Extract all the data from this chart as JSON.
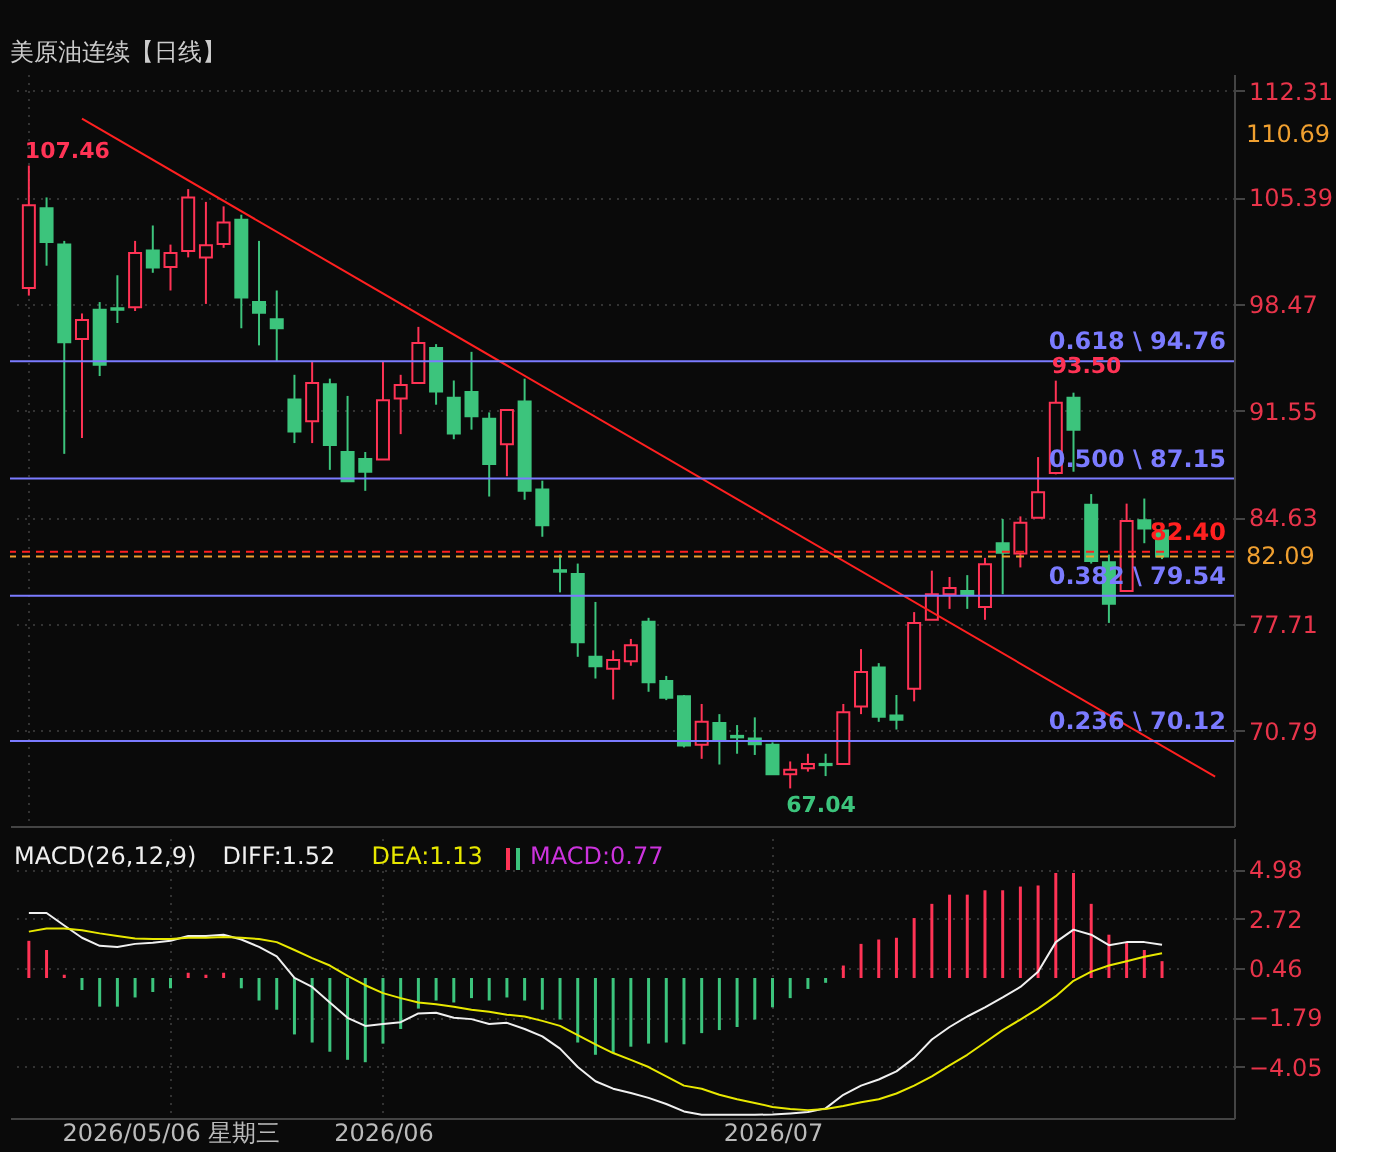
{
  "chart_data": [
    {
      "type": "candlestick",
      "title": "美原油连续【日线】",
      "categories": [
        null,
        null,
        null,
        null,
        null,
        null,
        null,
        null,
        null,
        null,
        null,
        null,
        null,
        null,
        null,
        null,
        null,
        null,
        null,
        null,
        null,
        null,
        null,
        null,
        null,
        null,
        null,
        null,
        null,
        null,
        null,
        null,
        null,
        null,
        null,
        null,
        null,
        null,
        null,
        null,
        null,
        null,
        null,
        null,
        null,
        null,
        null,
        null,
        null,
        null,
        null,
        null,
        null,
        null,
        null,
        null,
        null,
        null,
        null,
        null,
        null,
        null,
        null,
        null,
        null,
        null,
        null,
        null
      ],
      "tick_labels": "y",
      "ohlc": [
        [
          99.51,
          107.46,
          99.02,
          104.89
        ],
        [
          104.69,
          105.39,
          100.96,
          102.49
        ],
        [
          102.33,
          102.57,
          88.75,
          95.99
        ],
        [
          96.2,
          97.86,
          89.78,
          97.44
        ],
        [
          98.1,
          98.6,
          93.8,
          94.54
        ],
        [
          98.2,
          100.34,
          97.24,
          98.1
        ],
        [
          98.27,
          102.57,
          98.02,
          101.79
        ],
        [
          101.95,
          103.57,
          100.5,
          100.84
        ],
        [
          100.88,
          102.33,
          99.35,
          101.79
        ],
        [
          101.91,
          105.93,
          101.5,
          105.39
        ],
        [
          101.5,
          105.1,
          98.48,
          102.29
        ],
        [
          102.37,
          104.81,
          102.12,
          103.77
        ],
        [
          103.94,
          104.27,
          96.9,
          98.89
        ],
        [
          98.6,
          102.57,
          95.79,
          97.9
        ],
        [
          97.48,
          99.35,
          94.71,
          96.9
        ],
        [
          92.27,
          93.88,
          89.45,
          90.2
        ],
        [
          90.86,
          94.71,
          89.45,
          93.34
        ],
        [
          93.26,
          93.63,
          87.71,
          89.33
        ],
        [
          88.87,
          92.51,
          86.97,
          86.97
        ],
        [
          88.42,
          88.87,
          86.35,
          87.59
        ],
        [
          88.38,
          94.71,
          88.38,
          92.23
        ],
        [
          92.35,
          93.88,
          90.03,
          93.22
        ],
        [
          93.34,
          96.99,
          93.34,
          95.95
        ],
        [
          95.62,
          95.87,
          91.94,
          92.8
        ],
        [
          92.39,
          93.51,
          89.7,
          90.07
        ],
        [
          92.76,
          95.37,
          90.32,
          91.19
        ],
        [
          91.02,
          91.44,
          85.98,
          88.09
        ],
        [
          89.37,
          91.65,
          87.3,
          91.6
        ],
        [
          92.14,
          93.63,
          85.77,
          86.35
        ],
        [
          86.43,
          87.01,
          83.37,
          84.11
        ],
        [
          81.2,
          82.21,
          79.76,
          81.1
        ],
        [
          80.96,
          81.63,
          75.58,
          76.53
        ],
        [
          75.58,
          79.14,
          74.17,
          74.96
        ],
        [
          74.8,
          76.0,
          72.81,
          75.38
        ],
        [
          75.29,
          76.74,
          75.0,
          76.33
        ],
        [
          77.86,
          78.11,
          73.31,
          73.93
        ],
        [
          74.01,
          74.34,
          72.77,
          72.93
        ],
        [
          73.02,
          73.1,
          69.7,
          69.83
        ],
        [
          69.87,
          72.52,
          68.96,
          71.36
        ],
        [
          71.28,
          71.86,
          68.59,
          70.2
        ],
        [
          70.45,
          71.15,
          69.29,
          70.35
        ],
        [
          70.28,
          71.65,
          69.21,
          69.91
        ],
        [
          69.87,
          70.03,
          67.96,
          67.96
        ],
        [
          67.96,
          68.79,
          67.04,
          68.25
        ],
        [
          68.34,
          69.29,
          68.13,
          68.63
        ],
        [
          68.63,
          69.29,
          67.84,
          68.55
        ],
        [
          68.63,
          72.52,
          68.63,
          71.98
        ],
        [
          72.35,
          76.08,
          71.86,
          74.59
        ],
        [
          74.88,
          75.17,
          71.36,
          71.69
        ],
        [
          71.77,
          73.1,
          70.86,
          71.49
        ],
        [
          73.51,
          78.48,
          72.69,
          77.78
        ],
        [
          77.98,
          81.17,
          77.98,
          79.64
        ],
        [
          79.64,
          80.76,
          78.69,
          80.05
        ],
        [
          79.85,
          80.88,
          78.69,
          79.64
        ],
        [
          78.81,
          82.0,
          77.98,
          81.59
        ],
        [
          82.95,
          84.52,
          79.64,
          82.33
        ],
        [
          82.29,
          84.69,
          81.38,
          84.28
        ],
        [
          84.61,
          88.54,
          84.61,
          86.26
        ],
        [
          87.51,
          93.5,
          87.42,
          92.06
        ],
        [
          92.39,
          92.72,
          87.59,
          90.32
        ],
        [
          85.44,
          86.14,
          81.63,
          81.79
        ],
        [
          81.71,
          82.21,
          77.78,
          79.02
        ],
        [
          79.85,
          85.52,
          79.85,
          84.4
        ],
        [
          84.44,
          85.85,
          82.95,
          83.9
        ],
        [
          83.78,
          84.28,
          81.92,
          82.09
        ],
        null,
        null,
        null
      ],
      "colors": [
        "#ff3355",
        "#3cc47c",
        "#3cc47c",
        "#ff3355",
        "#3cc47c",
        "#3cc47c",
        "#ff3355",
        "#3cc47c",
        "#ff3355",
        "#ff3355",
        "#ff3355",
        "#ff3355",
        "#3cc47c",
        "#3cc47c",
        "#3cc47c",
        "#3cc47c",
        "#ff3355",
        "#3cc47c",
        "#3cc47c",
        "#3cc47c",
        "#ff3355",
        "#ff3355",
        "#ff3355",
        "#3cc47c",
        "#3cc47c",
        "#3cc47c",
        "#3cc47c",
        "#ff3355",
        "#3cc47c",
        "#3cc47c",
        "#3cc47c",
        "#3cc47c",
        "#3cc47c",
        "#ff3355",
        "#ff3355",
        "#3cc47c",
        "#3cc47c",
        "#3cc47c",
        "#ff3355",
        "#3cc47c",
        "#3cc47c",
        "#3cc47c",
        "#3cc47c",
        "#ff3355",
        "#ff3355",
        "#3cc47c",
        "#ff3355",
        "#ff3355",
        "#3cc47c",
        "#3cc47c",
        "#ff3355",
        "#ff3355",
        "#ff3355",
        "#3cc47c",
        "#ff3355",
        "#3cc47c",
        "#ff3355",
        "#ff3355",
        "#ff3355",
        "#3cc47c",
        "#3cc47c",
        "#3cc47c",
        "#ff3355",
        "#3cc47c",
        "#3cc47c",
        null,
        null,
        null
      ],
      "series": [
        {
          "type": "line",
          "color": "#ff2020",
          "values": [
            null,
            null,
            null,
            110.5,
            null,
            null,
            null,
            null,
            null,
            null,
            null,
            null,
            null,
            null,
            null,
            null,
            null,
            null,
            null,
            null,
            null,
            null,
            null,
            null,
            null,
            null,
            null,
            null,
            null,
            null,
            null,
            null,
            null,
            null,
            null,
            null,
            null,
            null,
            null,
            null,
            null,
            null,
            null,
            null,
            null,
            null,
            null,
            null,
            null,
            null,
            null,
            null,
            null,
            null,
            null,
            null,
            null,
            null,
            null,
            null,
            null,
            null,
            null,
            null,
            null,
            null,
            null,
            67.8
          ]
        }
      ],
      "ylim": [
        64.6,
        113.4
      ],
      "yticks": [
        112.31,
        105.39,
        98.47,
        91.55,
        84.63,
        77.71,
        70.79
      ],
      "grid": true,
      "ref_lines": [
        {
          "axis": "y",
          "value": 94.76,
          "label": "0.618 \\ 94.76",
          "color": "#7b7bff",
          "line_style": "solid"
        },
        {
          "axis": "y",
          "value": 87.15,
          "label": "0.500 \\ 87.15",
          "color": "#7b7bff",
          "line_style": "solid"
        },
        {
          "axis": "y",
          "value": 79.54,
          "label": "0.382 \\ 79.54",
          "color": "#7b7bff",
          "line_style": "solid"
        },
        {
          "axis": "y",
          "value": 70.12,
          "label": "0.236 \\ 70.12",
          "color": "#7b7bff",
          "line_style": "solid"
        },
        {
          "axis": "y",
          "value": 82.4,
          "label": "82.40",
          "color": "#ff2020",
          "line_style": "dashed"
        },
        {
          "axis": "y",
          "value": 82.09,
          "label": "82.09",
          "color": "#f0a030",
          "line_style": "dashed"
        }
      ],
      "annotations": [
        "107.46",
        "93.50",
        "67.04",
        "110.69"
      ]
    },
    {
      "type": "bar",
      "title": "MACD(26,12,9)",
      "categories": [
        null,
        null,
        null,
        null,
        null,
        null,
        null,
        null,
        "2026/05/06 星期三",
        null,
        null,
        null,
        null,
        null,
        null,
        null,
        null,
        null,
        null,
        null,
        "2026/06",
        null,
        null,
        null,
        null,
        null,
        null,
        null,
        null,
        null,
        null,
        null,
        null,
        null,
        null,
        null,
        null,
        null,
        null,
        null,
        null,
        null,
        "2026/07",
        null,
        null,
        null,
        null,
        null,
        null,
        null,
        null,
        null,
        null,
        null,
        null,
        null,
        null,
        null,
        null,
        null,
        null,
        null,
        null,
        null,
        null,
        null,
        null,
        null
      ],
      "ylim": [
        -6.4,
        6.4
      ],
      "yticks": [
        4.98,
        2.72,
        0.46,
        -1.79,
        -4.05
      ],
      "grid": true,
      "series": [
        {
          "name": "DIFF:1.52",
          "type": "line",
          "color": "#f0f0f0",
          "values": [
            2.97,
            2.97,
            2.4,
            1.84,
            1.47,
            1.42,
            1.56,
            1.61,
            1.7,
            1.92,
            1.92,
            1.98,
            1.76,
            1.42,
            0.99,
            0.01,
            -0.41,
            -1.12,
            -1.82,
            -2.19,
            -2.1,
            -2.02,
            -1.62,
            -1.59,
            -1.82,
            -1.88,
            -2.1,
            -2.05,
            -2.33,
            -2.67,
            -3.23,
            -4.07,
            -4.72,
            -5.06,
            -5.26,
            -5.48,
            -5.76,
            -6.1,
            -6.25,
            -6.25,
            -6.25,
            -6.25,
            -6.24,
            -6.19,
            -6.13,
            -5.96,
            -5.34,
            -4.92,
            -4.64,
            -4.27,
            -3.65,
            -2.81,
            -2.24,
            -1.76,
            -1.34,
            -0.89,
            -0.41,
            0.29,
            1.64,
            2.21,
            1.98,
            1.5,
            1.64,
            1.64,
            1.52,
            null,
            null,
            null
          ]
        },
        {
          "name": "DEA:1.13",
          "type": "line",
          "color": "#e8e800",
          "values": [
            2.12,
            2.26,
            2.26,
            2.18,
            2.04,
            1.92,
            1.81,
            1.78,
            1.78,
            1.84,
            1.84,
            1.87,
            1.84,
            1.78,
            1.64,
            1.28,
            0.91,
            0.57,
            0.1,
            -0.33,
            -0.69,
            -0.92,
            -1.12,
            -1.2,
            -1.31,
            -1.45,
            -1.54,
            -1.68,
            -1.76,
            -1.96,
            -2.19,
            -2.61,
            -3.03,
            -3.43,
            -3.74,
            -4.07,
            -4.5,
            -4.92,
            -5.06,
            -5.34,
            -5.54,
            -5.71,
            -5.9,
            -5.99,
            -6.04,
            -5.99,
            -5.85,
            -5.68,
            -5.54,
            -5.28,
            -4.92,
            -4.5,
            -3.99,
            -3.51,
            -2.95,
            -2.38,
            -1.9,
            -1.4,
            -0.83,
            -0.13,
            0.29,
            0.57,
            0.77,
            0.97,
            1.13,
            null,
            null,
            null
          ]
        },
        {
          "name": "MACD:0.77",
          "type": "bar",
          "color": "#cc33dd",
          "values": [
            1.7,
            1.28,
            0.15,
            -0.55,
            -1.31,
            -1.31,
            -0.89,
            -0.64,
            -0.47,
            0.24,
            0.15,
            0.24,
            -0.47,
            -1.03,
            -1.45,
            -2.58,
            -2.95,
            -3.37,
            -3.74,
            -3.85,
            -3.0,
            -2.33,
            -1.4,
            -1.03,
            -1.12,
            -0.92,
            -1.03,
            -0.89,
            -1.03,
            -1.45,
            -1.9,
            -2.95,
            -3.51,
            -3.43,
            -3.14,
            -3.0,
            -2.95,
            -3.03,
            -2.52,
            -2.38,
            -2.24,
            -1.9,
            -1.34,
            -0.92,
            -0.5,
            -0.22,
            0.57,
            1.56,
            1.76,
            1.84,
            2.74,
            3.39,
            3.81,
            3.81,
            4.01,
            4.01,
            4.18,
            4.23,
            4.8,
            4.8,
            3.39,
            1.98,
            1.64,
            1.28,
            0.77,
            null,
            null,
            null
          ],
          "colors": [
            "#ff3355",
            "#ff3355",
            "#ff3355",
            "#3cc47c",
            "#3cc47c",
            "#3cc47c",
            "#3cc47c",
            "#3cc47c",
            "#3cc47c",
            "#ff3355",
            "#ff3355",
            "#ff3355",
            "#3cc47c",
            "#3cc47c",
            "#3cc47c",
            "#3cc47c",
            "#3cc47c",
            "#3cc47c",
            "#3cc47c",
            "#3cc47c",
            "#3cc47c",
            "#3cc47c",
            "#3cc47c",
            "#3cc47c",
            "#3cc47c",
            "#3cc47c",
            "#3cc47c",
            "#3cc47c",
            "#3cc47c",
            "#3cc47c",
            "#3cc47c",
            "#3cc47c",
            "#3cc47c",
            "#3cc47c",
            "#3cc47c",
            "#3cc47c",
            "#3cc47c",
            "#3cc47c",
            "#3cc47c",
            "#3cc47c",
            "#3cc47c",
            "#3cc47c",
            "#3cc47c",
            "#3cc47c",
            "#3cc47c",
            "#3cc47c",
            "#ff3355",
            "#ff3355",
            "#ff3355",
            "#ff3355",
            "#ff3355",
            "#ff3355",
            "#ff3355",
            "#ff3355",
            "#ff3355",
            "#ff3355",
            "#ff3355",
            "#ff3355",
            "#ff3355",
            "#ff3355",
            "#ff3355",
            "#ff3355",
            "#ff3355",
            "#ff3355",
            "#ff3355",
            null,
            null,
            null
          ]
        }
      ]
    }
  ]
}
